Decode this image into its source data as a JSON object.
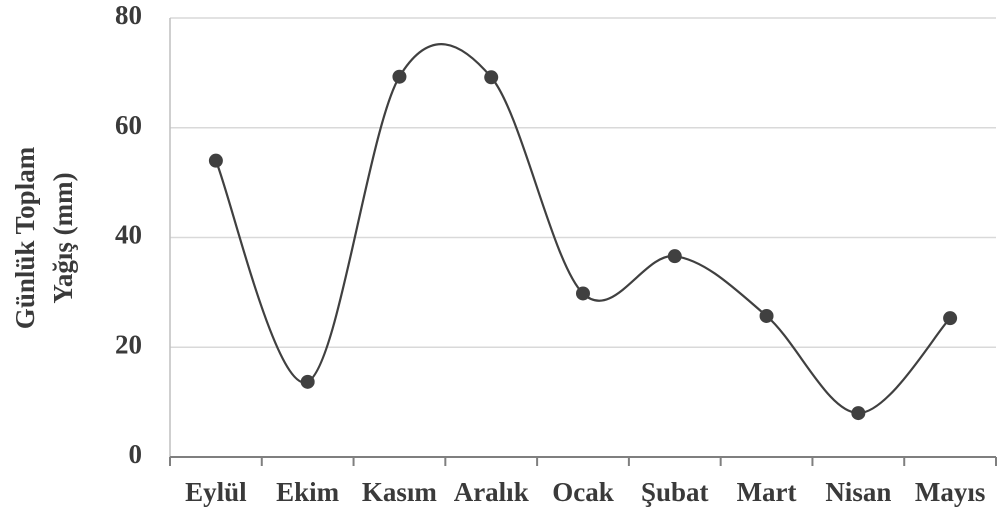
{
  "chart_data": {
    "type": "line",
    "ylabel": [
      "Günlük Toplam",
      "Yağış (mm)"
    ],
    "categories": [
      "Eylül",
      "Ekim",
      "Kasım",
      "Aralık",
      "Ocak",
      "Şubat",
      "Mart",
      "Nisan",
      "Mayıs"
    ],
    "series": [
      {
        "name": "Günlük Toplam Yağış (mm)",
        "color": "#404040",
        "values": [
          54,
          13.7,
          69.3,
          69.2,
          29.8,
          36.6,
          25.7,
          8,
          25.3
        ]
      }
    ],
    "ylim": [
      0,
      80
    ],
    "yticks": [
      0,
      20,
      40,
      60,
      80
    ],
    "grid": true,
    "smooth": true
  }
}
